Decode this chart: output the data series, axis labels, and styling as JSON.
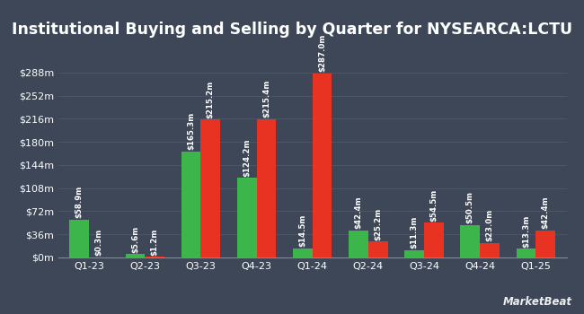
{
  "title": "Institutional Buying and Selling by Quarter for NYSEARCA:LCTU",
  "quarters": [
    "Q1-23",
    "Q2-23",
    "Q3-23",
    "Q4-23",
    "Q1-24",
    "Q2-24",
    "Q3-24",
    "Q4-24",
    "Q1-25"
  ],
  "inflows": [
    58.9,
    5.6,
    165.3,
    124.2,
    14.5,
    42.4,
    11.3,
    50.5,
    13.3
  ],
  "outflows": [
    0.3,
    1.2,
    215.2,
    215.4,
    287.0,
    25.2,
    54.5,
    23.0,
    42.4
  ],
  "inflow_labels": [
    "$58.9m",
    "$5.6m",
    "$165.3m",
    "$124.2m",
    "$14.5m",
    "$42.4m",
    "$11.3m",
    "$50.5m",
    "$13.3m"
  ],
  "outflow_labels": [
    "$0.3m",
    "$1.2m",
    "$215.2m",
    "$215.4m",
    "$287.0m",
    "$25.2m",
    "$54.5m",
    "$23.0m",
    "$42.4m"
  ],
  "inflow_color": "#3cb54a",
  "outflow_color": "#e83323",
  "background_color": "#3d4757",
  "text_color": "#ffffff",
  "grid_color": "#505869",
  "yticks": [
    0,
    36,
    72,
    108,
    144,
    180,
    216,
    252,
    288
  ],
  "ytick_labels": [
    "$0m",
    "$36m",
    "$72m",
    "$108m",
    "$144m",
    "$180m",
    "$216m",
    "$252m",
    "$288m"
  ],
  "ylim": [
    0,
    318
  ],
  "bar_width": 0.35,
  "title_fontsize": 12.5,
  "tick_fontsize": 8,
  "label_fontsize": 6.2,
  "legend_fontsize": 8.5
}
